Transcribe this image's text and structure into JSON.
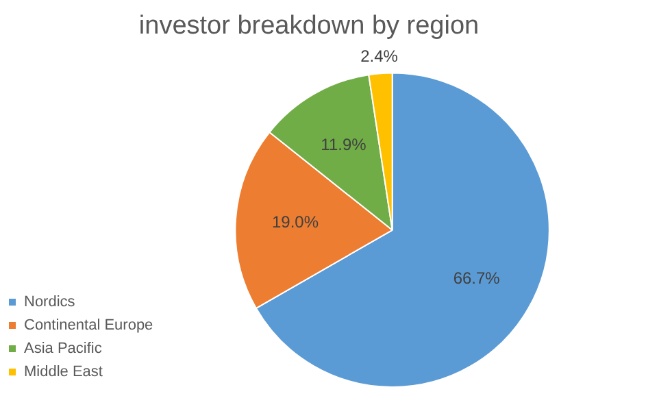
{
  "chart_data": {
    "type": "pie",
    "title": "investor breakdown by region",
    "categories": [
      "Nordics",
      "Continental Europe",
      "Asia Pacific",
      "Middle East"
    ],
    "values": [
      66.7,
      19.0,
      11.9,
      2.4
    ],
    "colors": [
      "#5b9bd5",
      "#ed7d31",
      "#70ad47",
      "#ffc000"
    ],
    "value_labels": [
      "66.7%",
      "19.0%",
      "11.9%",
      "2.4%"
    ],
    "legend": "left"
  }
}
